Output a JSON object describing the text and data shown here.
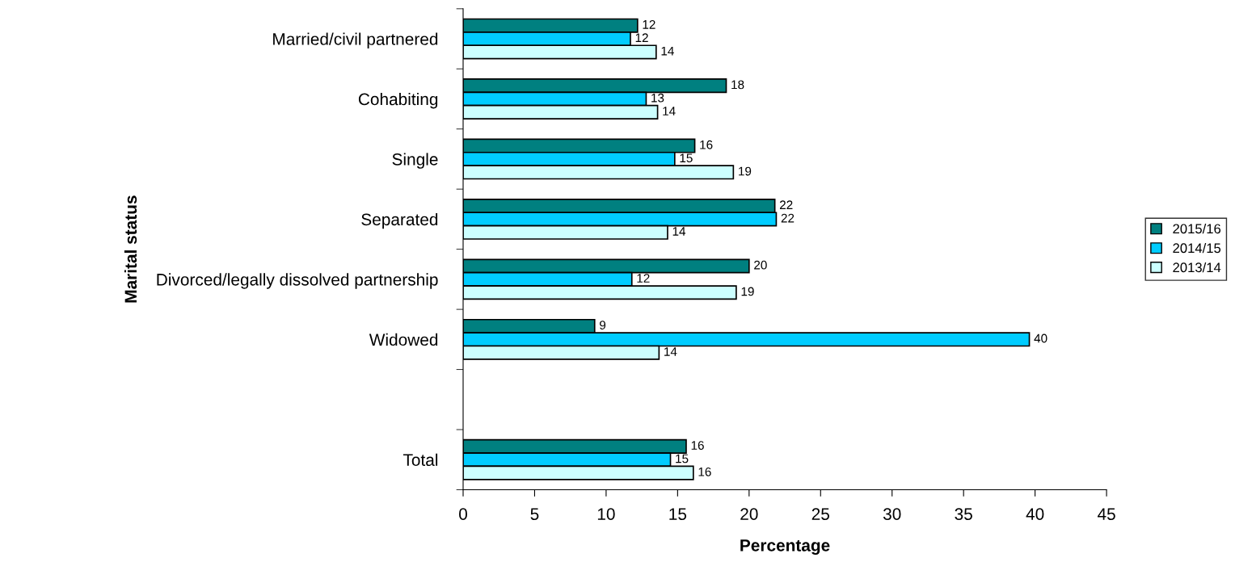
{
  "chart_data": {
    "type": "bar",
    "orientation": "horizontal",
    "xlabel": "Percentage",
    "ylabel": "Marital status",
    "categories": [
      "Married/civil partnered",
      "Cohabiting",
      "Single",
      "Separated",
      "Divorced/legally dissolved partnership",
      "Widowed",
      null,
      "Total"
    ],
    "series": [
      {
        "name": "2015/16",
        "color": "#008080",
        "values": [
          12.2,
          18.4,
          16.2,
          21.8,
          20.0,
          9.2,
          null,
          15.6
        ],
        "value_labels": [
          "12",
          "18",
          "16",
          "22",
          "20",
          "9",
          null,
          "16"
        ]
      },
      {
        "name": "2014/15",
        "color": "#00ccff",
        "values": [
          11.7,
          12.8,
          14.8,
          21.9,
          11.8,
          39.6,
          null,
          14.5
        ],
        "value_labels": [
          "12",
          "13",
          "15",
          "22",
          "12",
          "40",
          null,
          "15"
        ]
      },
      {
        "name": "2013/14",
        "color": "#ccffff",
        "values": [
          13.5,
          13.6,
          18.9,
          14.3,
          19.1,
          13.7,
          null,
          16.1
        ],
        "value_labels": [
          "14",
          "14",
          "19",
          "14",
          "19",
          "14",
          null,
          "16"
        ]
      }
    ],
    "xlim": [
      0,
      45
    ],
    "xticks": [
      0,
      5,
      10,
      15,
      20,
      25,
      30,
      35,
      40,
      45
    ],
    "grid": false,
    "legend": "right"
  }
}
